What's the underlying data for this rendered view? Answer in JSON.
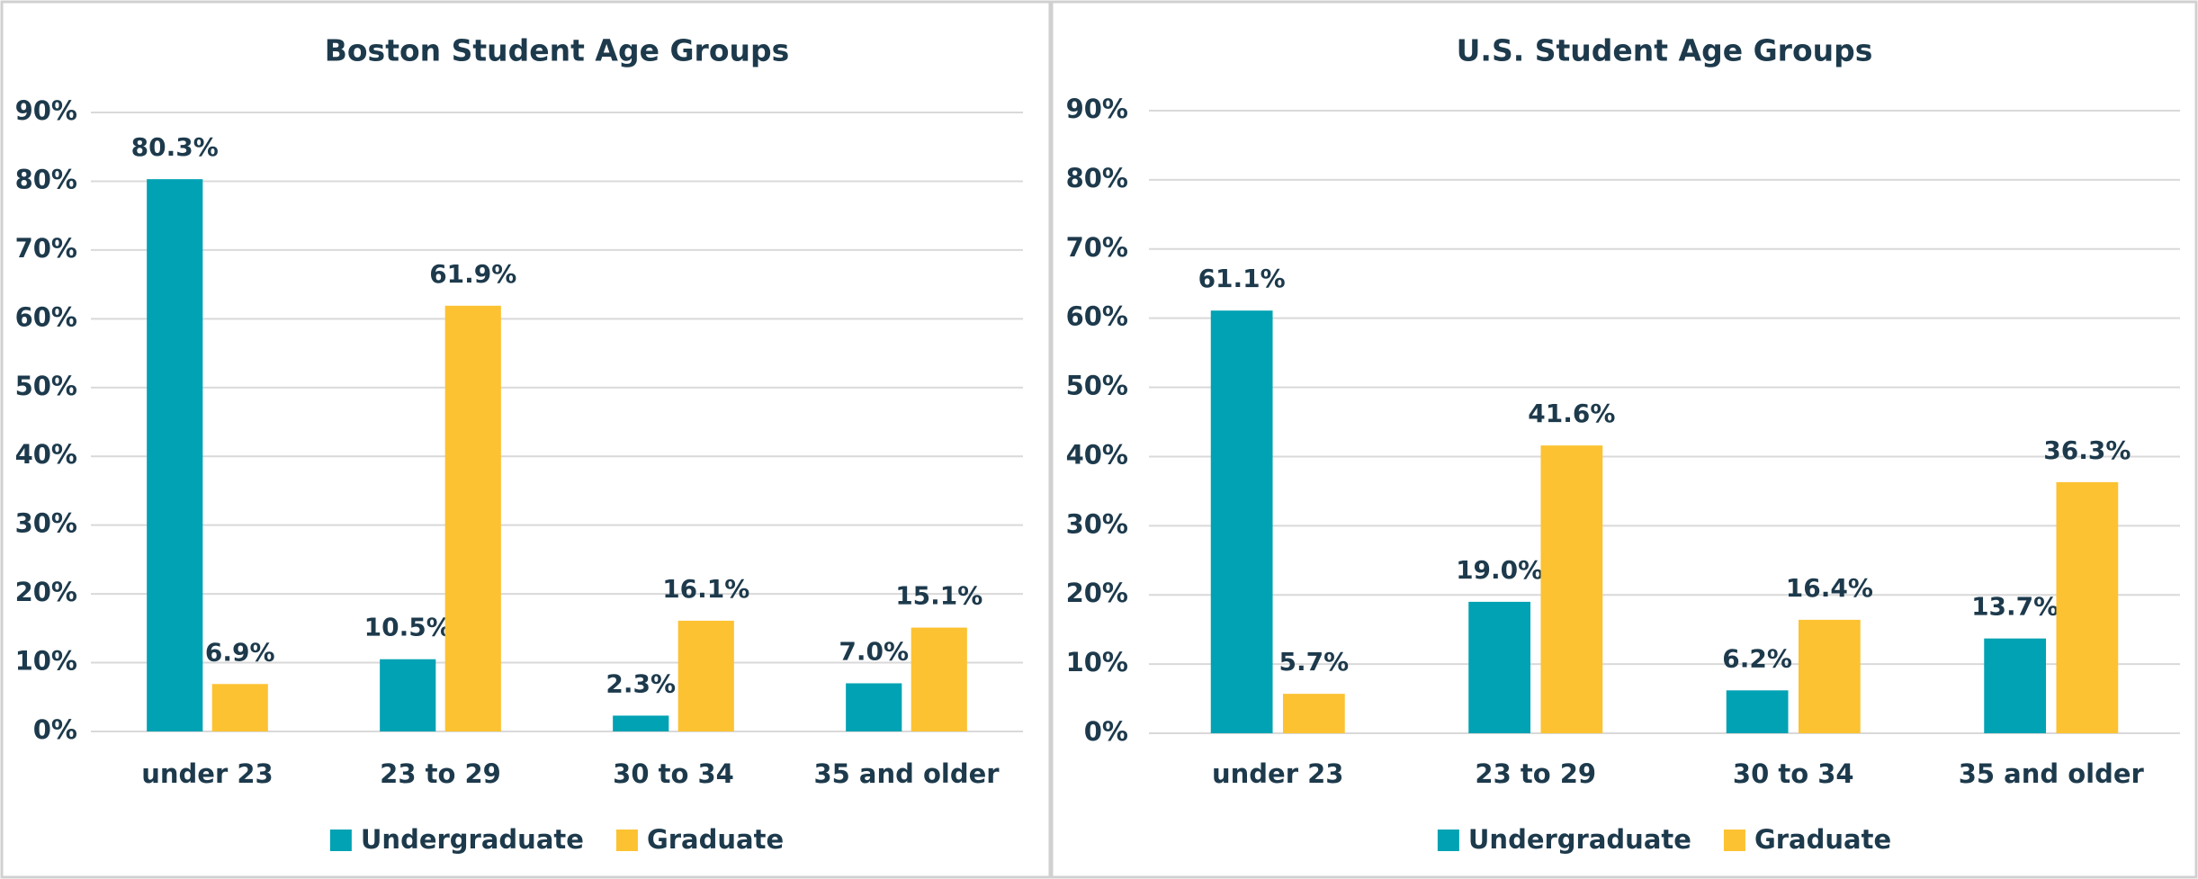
{
  "chart_data": [
    {
      "type": "bar",
      "title": "Boston Student Age Groups",
      "categories": [
        "under 23",
        "23 to 29",
        "30 to 34",
        "35 and older"
      ],
      "series": [
        {
          "name": "Undergraduate",
          "color": "#00a2b3",
          "values": [
            80.3,
            10.5,
            2.3,
            7.0
          ],
          "value_labels": [
            "80.3%",
            "10.5%",
            "2.3%",
            "7.0%"
          ]
        },
        {
          "name": "Graduate",
          "color": "#fcc232",
          "values": [
            6.9,
            61.9,
            16.1,
            15.1
          ],
          "value_labels": [
            "6.9%",
            "61.9%",
            "16.1%",
            "15.1%"
          ]
        }
      ],
      "ylim": [
        0,
        90
      ],
      "yticks": [
        {
          "value": 0,
          "label": "0%"
        },
        {
          "value": 10,
          "label": "10%"
        },
        {
          "value": 20,
          "label": "20%"
        },
        {
          "value": 30,
          "label": "30%"
        },
        {
          "value": 40,
          "label": "40%"
        },
        {
          "value": 50,
          "label": "50%"
        },
        {
          "value": 60,
          "label": "60%"
        },
        {
          "value": 70,
          "label": "70%"
        },
        {
          "value": 80,
          "label": "80%"
        },
        {
          "value": 90,
          "label": "90%"
        }
      ],
      "grid": true,
      "legend": "bottom"
    },
    {
      "type": "bar",
      "title": "U.S. Student Age Groups",
      "categories": [
        "under 23",
        "23 to 29",
        "30 to 34",
        "35 and older"
      ],
      "series": [
        {
          "name": "Undergraduate",
          "color": "#00a2b3",
          "values": [
            61.1,
            19.0,
            6.2,
            13.7
          ],
          "value_labels": [
            "61.1%",
            "19.0%",
            "6.2%",
            "13.7%"
          ]
        },
        {
          "name": "Graduate",
          "color": "#fcc232",
          "values": [
            5.7,
            41.6,
            16.4,
            36.3
          ],
          "value_labels": [
            "5.7%",
            "41.6%",
            "16.4%",
            "36.3%"
          ]
        }
      ],
      "ylim": [
        0,
        90
      ],
      "yticks": [
        {
          "value": 0,
          "label": "0%"
        },
        {
          "value": 10,
          "label": "10%"
        },
        {
          "value": 20,
          "label": "20%"
        },
        {
          "value": 30,
          "label": "30%"
        },
        {
          "value": 40,
          "label": "40%"
        },
        {
          "value": 50,
          "label": "50%"
        },
        {
          "value": 60,
          "label": "60%"
        },
        {
          "value": 70,
          "label": "70%"
        },
        {
          "value": 80,
          "label": "80%"
        },
        {
          "value": 90,
          "label": "90%"
        }
      ],
      "grid": true,
      "legend": "bottom"
    }
  ]
}
